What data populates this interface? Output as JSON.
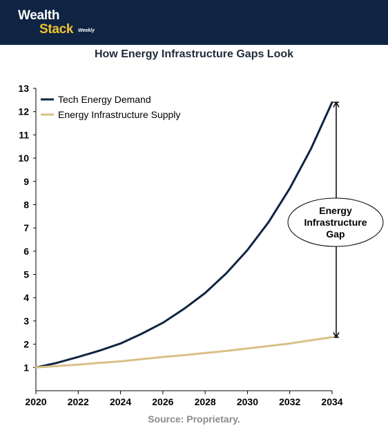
{
  "brand": {
    "line1": "Wealth",
    "line2": "Stack",
    "line3": "Weekly"
  },
  "source": "Source: Proprietary.",
  "chart_data": {
    "type": "line",
    "title": "How Energy Infrastructure Gaps Look",
    "xlabel": "",
    "ylabel": "",
    "xlim": [
      2020,
      2034
    ],
    "ylim": [
      0,
      13
    ],
    "x_ticks": [
      "2020",
      "2022",
      "2024",
      "2026",
      "2028",
      "2030",
      "2032",
      "2034"
    ],
    "y_ticks": [
      "1",
      "2",
      "3",
      "4",
      "5",
      "6",
      "7",
      "8",
      "9",
      "10",
      "11",
      "12",
      "13"
    ],
    "x": [
      2020,
      2021,
      2022,
      2023,
      2024,
      2025,
      2026,
      2027,
      2028,
      2029,
      2030,
      2031,
      2032,
      2033,
      2034
    ],
    "series": [
      {
        "name": "Tech Energy Demand",
        "color": "#0e2442",
        "values": [
          1.0,
          1.2,
          1.45,
          1.72,
          2.03,
          2.45,
          2.92,
          3.52,
          4.2,
          5.05,
          6.05,
          7.25,
          8.7,
          10.4,
          12.4
        ]
      },
      {
        "name": "Energy Infrastructure Supply",
        "color": "#d9c087",
        "values": [
          1.0,
          1.06,
          1.12,
          1.2,
          1.26,
          1.36,
          1.45,
          1.53,
          1.62,
          1.71,
          1.82,
          1.92,
          2.03,
          2.17,
          2.3
        ]
      }
    ],
    "grid": false,
    "legend_position": "top-left",
    "annotation": {
      "lines": [
        "Energy",
        "Infrastructure",
        "Gap"
      ],
      "x": 2034,
      "y_from": 2.3,
      "y_to": 12.4
    }
  }
}
